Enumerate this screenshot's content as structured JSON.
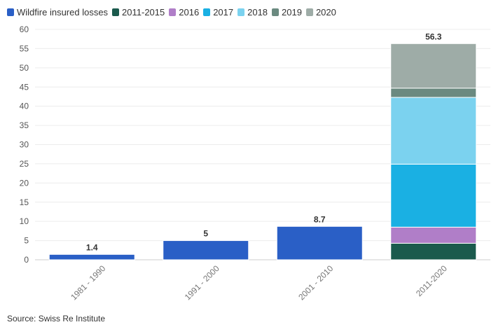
{
  "chart_data": {
    "type": "bar",
    "stacked": true,
    "categories": [
      "1981 - 1990",
      "1991 - 2000",
      "2001 - 2010",
      "2011-2020"
    ],
    "ylim": [
      0,
      60
    ],
    "yticks": [
      0,
      5,
      10,
      15,
      20,
      25,
      30,
      35,
      40,
      45,
      50,
      55,
      60
    ],
    "grid": true,
    "legend_position": "top-left",
    "series": [
      {
        "name": "Wildfire insured losses",
        "color": "#2a5fc6",
        "values": [
          1.4,
          5,
          8.7,
          null
        ]
      },
      {
        "name": "2011-2015",
        "color": "#1b5a4d",
        "values": [
          null,
          null,
          null,
          4.3
        ]
      },
      {
        "name": "2016",
        "color": "#b07ec8",
        "values": [
          null,
          null,
          null,
          4.2
        ]
      },
      {
        "name": "2017",
        "color": "#1ab0e3",
        "values": [
          null,
          null,
          null,
          16.4
        ]
      },
      {
        "name": "2018",
        "color": "#7bd2ef",
        "values": [
          null,
          null,
          null,
          17.4
        ]
      },
      {
        "name": "2019",
        "color": "#6b8a80",
        "values": [
          null,
          null,
          null,
          2.4
        ]
      },
      {
        "name": "2020",
        "color": "#9eaca7",
        "values": [
          null,
          null,
          null,
          11.6
        ]
      }
    ],
    "data_labels": [
      "1.4",
      "5",
      "8.7",
      "56.3"
    ],
    "source": "Source: Swiss Re Institute"
  }
}
